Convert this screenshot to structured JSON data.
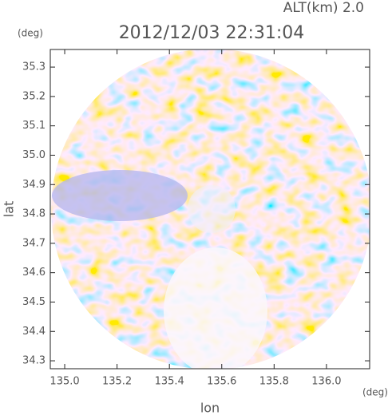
{
  "chart_data": {
    "type": "radar-map",
    "title": "2012/12/03 22:31:04",
    "subtitle": "ALT(km) 2.0",
    "x_label": "lon",
    "x_unit": "(deg)",
    "y_label": "lat",
    "y_unit": "(deg)",
    "xlim": [
      134.945,
      136.165
    ],
    "ylim": [
      34.273,
      35.36
    ],
    "xticks": [
      {
        "value": 135,
        "label": "135.0"
      },
      135.2,
      135.4,
      135.6,
      135.8,
      {
        "value": 136,
        "label": "136.0"
      }
    ],
    "yticks": [
      34.3,
      34.4,
      34.5,
      34.6,
      34.7,
      34.8,
      34.9,
      {
        "value": 35,
        "label": "35.0"
      },
      35.1,
      35.2,
      35.3
    ]
  }
}
